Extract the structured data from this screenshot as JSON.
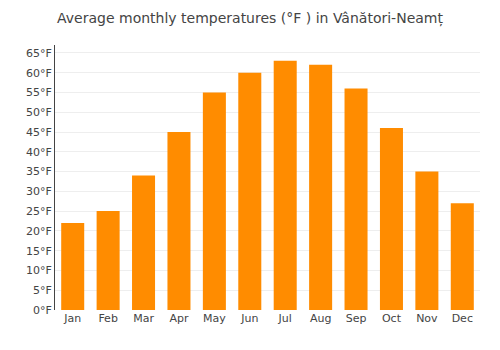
{
  "chart_data": {
    "type": "bar",
    "title": "Average monthly temperatures (°F ) in Vânători-Neamț",
    "categories": [
      "Jan",
      "Feb",
      "Mar",
      "Apr",
      "May",
      "Jun",
      "Jul",
      "Aug",
      "Sep",
      "Oct",
      "Nov",
      "Dec"
    ],
    "values": [
      22,
      25,
      34,
      45,
      55,
      60,
      63,
      62,
      56,
      46,
      35,
      27
    ],
    "color": "#FF8C00",
    "ylim": [
      0,
      67
    ],
    "yticks": [
      {
        "value": 0,
        "label": "0°F"
      },
      {
        "value": 5,
        "label": "5°F"
      },
      {
        "value": 10,
        "label": "10°F"
      },
      {
        "value": 15,
        "label": "15°F"
      },
      {
        "value": 20,
        "label": "20°F"
      },
      {
        "value": 25,
        "label": "25°F"
      },
      {
        "value": 30,
        "label": "30°F"
      },
      {
        "value": 35,
        "label": "35°F"
      },
      {
        "value": 40,
        "label": "40°F"
      },
      {
        "value": 45,
        "label": "45°F"
      },
      {
        "value": 50,
        "label": "50°F"
      },
      {
        "value": 55,
        "label": "55°F"
      },
      {
        "value": 60,
        "label": "60°F"
      },
      {
        "value": 65,
        "label": "65°F"
      }
    ],
    "grid": true
  }
}
